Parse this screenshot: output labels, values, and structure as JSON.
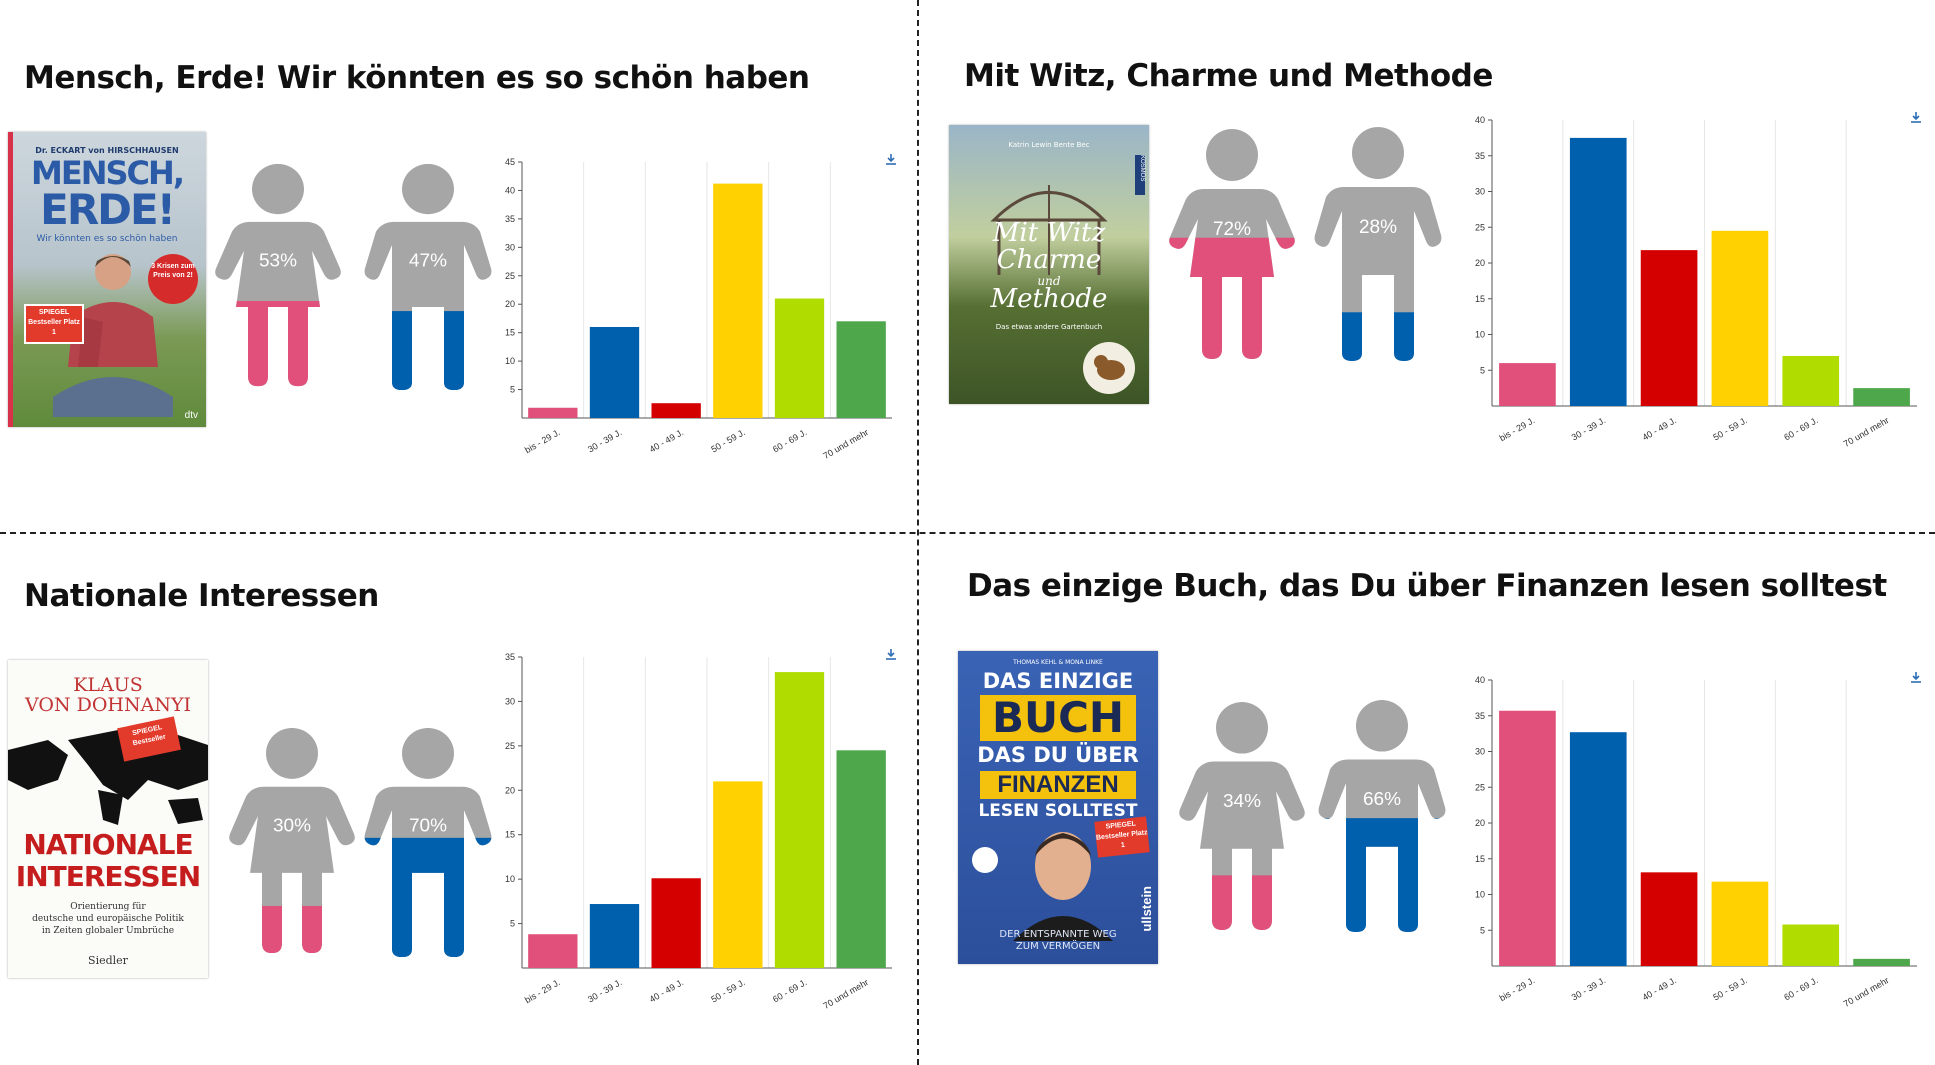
{
  "panels": [
    {
      "title": "Mensch, Erde! Wir könnten es so schön haben",
      "female_pct": "53%",
      "male_pct": "47%",
      "female_fill": 0.53,
      "male_fill": 0.47,
      "cover": {
        "author": "Dr. ECKART von HIRSCHHAUSEN",
        "title_line1": "MENSCH,",
        "title_line2": "ERDE!",
        "subtitle": "Wir könnten es so schön haben",
        "badge_spiegel": "SPIEGEL Bestseller Platz 1",
        "badge_red": "3 Krisen zum Preis von 2!",
        "publisher": "dtv"
      }
    },
    {
      "title": "Mit Witz, Charme und Methode",
      "female_pct": "72%",
      "male_pct": "28%",
      "female_fill": 0.72,
      "male_fill": 0.28,
      "cover": {
        "authors": "Katrin Lewin Bente Bec",
        "publisher": "KOSMOS",
        "title_line1": "Mit Witz",
        "title_line2": "Charme",
        "title_line3": "und",
        "title_line4": "Methode",
        "subtitle": "Das etwas andere Gartenbuch"
      }
    },
    {
      "title": "Nationale Interessen",
      "female_pct": "30%",
      "male_pct": "70%",
      "female_fill": 0.3,
      "male_fill": 0.7,
      "cover": {
        "author_line1": "KLAUS",
        "author_line2": "VON DOHNANYI",
        "badge_spiegel": "SPIEGEL Bestseller",
        "title_line1": "NATIONALE",
        "title_line2": "INTERESSEN",
        "subtitle_line1": "Orientierung für",
        "subtitle_line2": "deutsche und europäische Politik",
        "subtitle_line3": "in Zeiten globaler Umbrüche",
        "publisher": "Siedler"
      }
    },
    {
      "title": "Das einzige Buch, das Du über Finanzen lesen solltest",
      "female_pct": "34%",
      "male_pct": "66%",
      "female_fill": 0.34,
      "male_fill": 0.66,
      "cover": {
        "authors": "THOMAS KEHL & MONA LINKE",
        "title_line1": "DAS EINZIGE",
        "title_line2": "BUCH",
        "title_line3": "DAS DU ÜBER",
        "title_line4": "FINANZEN",
        "title_line5": "LESEN SOLLTEST",
        "badge_spiegel": "SPIEGEL Bestseller Platz 1",
        "tagline_line1": "DER ENTSPANNTE WEG",
        "tagline_line2": "ZUM VERMÖGEN",
        "publisher": "ullstein"
      }
    }
  ],
  "chart_data": [
    {
      "type": "bar",
      "categories": [
        "bis - 29 J.",
        "30 - 39 J.",
        "40 - 49 J.",
        "50 - 59 J.",
        "60 - 69 J.",
        "70 und mehr"
      ],
      "values": [
        1.8,
        16,
        2.6,
        41.2,
        21,
        17
      ],
      "ylim": [
        0,
        45
      ],
      "yticks": [
        5,
        10,
        15,
        20,
        25,
        30,
        35,
        40,
        45
      ],
      "grid": "vertical",
      "colors": [
        "#e0507a",
        "#0060ae",
        "#d40000",
        "#ffd100",
        "#b1dc00",
        "#4ea74a"
      ]
    },
    {
      "type": "bar",
      "categories": [
        "bis - 29 J.",
        "30 - 39 J.",
        "40 - 49 J.",
        "50 - 59 J.",
        "60 - 69 J.",
        "70 und mehr"
      ],
      "values": [
        6,
        37.5,
        21.8,
        24.5,
        7,
        2.5
      ],
      "ylim": [
        0,
        40
      ],
      "yticks": [
        5,
        10,
        15,
        20,
        25,
        30,
        35,
        40
      ],
      "grid": "vertical",
      "colors": [
        "#e0507a",
        "#0060ae",
        "#d40000",
        "#ffd100",
        "#b1dc00",
        "#4ea74a"
      ]
    },
    {
      "type": "bar",
      "categories": [
        "bis - 29 J.",
        "30 - 39 J.",
        "40 - 49 J.",
        "50 - 59 J.",
        "60 - 69 J.",
        "70 und mehr"
      ],
      "values": [
        3.8,
        7.2,
        10.1,
        21,
        33.3,
        24.5
      ],
      "ylim": [
        0,
        35
      ],
      "yticks": [
        5,
        10,
        15,
        20,
        25,
        30,
        35
      ],
      "grid": "vertical",
      "colors": [
        "#e0507a",
        "#0060ae",
        "#d40000",
        "#ffd100",
        "#b1dc00",
        "#4ea74a"
      ]
    },
    {
      "type": "bar",
      "categories": [
        "bis - 29 J.",
        "30 - 39 J.",
        "40 - 49 J.",
        "50 - 59 J.",
        "60 - 69 J.",
        "70 und mehr"
      ],
      "values": [
        35.7,
        32.7,
        13.1,
        11.8,
        5.8,
        1
      ],
      "ylim": [
        0,
        40
      ],
      "yticks": [
        5,
        10,
        15,
        20,
        25,
        30,
        35,
        40
      ],
      "grid": "vertical",
      "colors": [
        "#e0507a",
        "#0060ae",
        "#d40000",
        "#ffd100",
        "#b1dc00",
        "#4ea74a"
      ]
    }
  ],
  "icons": {
    "download": "download-icon",
    "female": "female-figure-icon",
    "male": "male-figure-icon"
  },
  "colors": {
    "female": "#e0507a",
    "male": "#0060ae",
    "figure_gray": "#a6a6a6"
  }
}
